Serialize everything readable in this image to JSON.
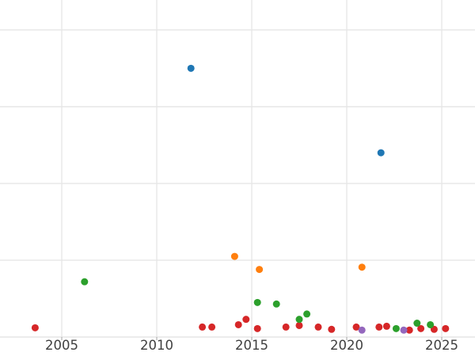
{
  "chart_data": {
    "type": "scatter",
    "title": "",
    "xlabel": "",
    "ylabel": "",
    "x_tick_labels": [
      "2005",
      "2010",
      "2015",
      "2020",
      "2025"
    ],
    "x_ticks": [
      2005,
      2010,
      2015,
      2020,
      2025
    ],
    "xlim": [
      2001.75,
      2026.75
    ],
    "ylim": [
      0,
      4.39
    ],
    "y_gridline_values": [
      0,
      1,
      2,
      3,
      4
    ],
    "y_tick_labels_visible": false,
    "grid": true,
    "legend": false,
    "marker_radius_px": 4.5,
    "gridline_color": "#e6e6e6",
    "tick_color": "#b0b0b0",
    "tick_label_color": "#3f3f3f",
    "series": [
      {
        "name": "red-series",
        "color": "#d62728",
        "points": [
          {
            "x": 2003.6,
            "y": 0.12
          },
          {
            "x": 2012.4,
            "y": 0.13
          },
          {
            "x": 2012.9,
            "y": 0.13
          },
          {
            "x": 2014.3,
            "y": 0.16
          },
          {
            "x": 2014.7,
            "y": 0.23
          },
          {
            "x": 2015.3,
            "y": 0.11
          },
          {
            "x": 2016.8,
            "y": 0.13
          },
          {
            "x": 2017.5,
            "y": 0.15
          },
          {
            "x": 2018.5,
            "y": 0.13
          },
          {
            "x": 2019.2,
            "y": 0.1
          },
          {
            "x": 2020.5,
            "y": 0.13
          },
          {
            "x": 2021.7,
            "y": 0.13
          },
          {
            "x": 2022.1,
            "y": 0.14
          },
          {
            "x": 2023.3,
            "y": 0.09
          },
          {
            "x": 2023.9,
            "y": 0.11
          },
          {
            "x": 2024.6,
            "y": 0.1
          },
          {
            "x": 2025.2,
            "y": 0.11
          }
        ]
      },
      {
        "name": "blue-series",
        "color": "#1f77b4",
        "points": [
          {
            "x": 2011.8,
            "y": 3.5
          },
          {
            "x": 2021.8,
            "y": 2.4
          }
        ]
      },
      {
        "name": "orange-series",
        "color": "#ff7f0e",
        "points": [
          {
            "x": 2014.1,
            "y": 1.05
          },
          {
            "x": 2015.4,
            "y": 0.88
          },
          {
            "x": 2020.8,
            "y": 0.91
          }
        ]
      },
      {
        "name": "green-series",
        "color": "#2ca02c",
        "points": [
          {
            "x": 2006.2,
            "y": 0.72
          },
          {
            "x": 2015.3,
            "y": 0.45
          },
          {
            "x": 2016.3,
            "y": 0.43
          },
          {
            "x": 2017.5,
            "y": 0.23
          },
          {
            "x": 2017.9,
            "y": 0.3
          },
          {
            "x": 2022.6,
            "y": 0.11
          },
          {
            "x": 2023.7,
            "y": 0.18
          },
          {
            "x": 2024.4,
            "y": 0.16
          }
        ]
      },
      {
        "name": "purple-series",
        "color": "#9467bd",
        "points": [
          {
            "x": 2020.8,
            "y": 0.09
          },
          {
            "x": 2023.0,
            "y": 0.09
          }
        ]
      }
    ]
  }
}
